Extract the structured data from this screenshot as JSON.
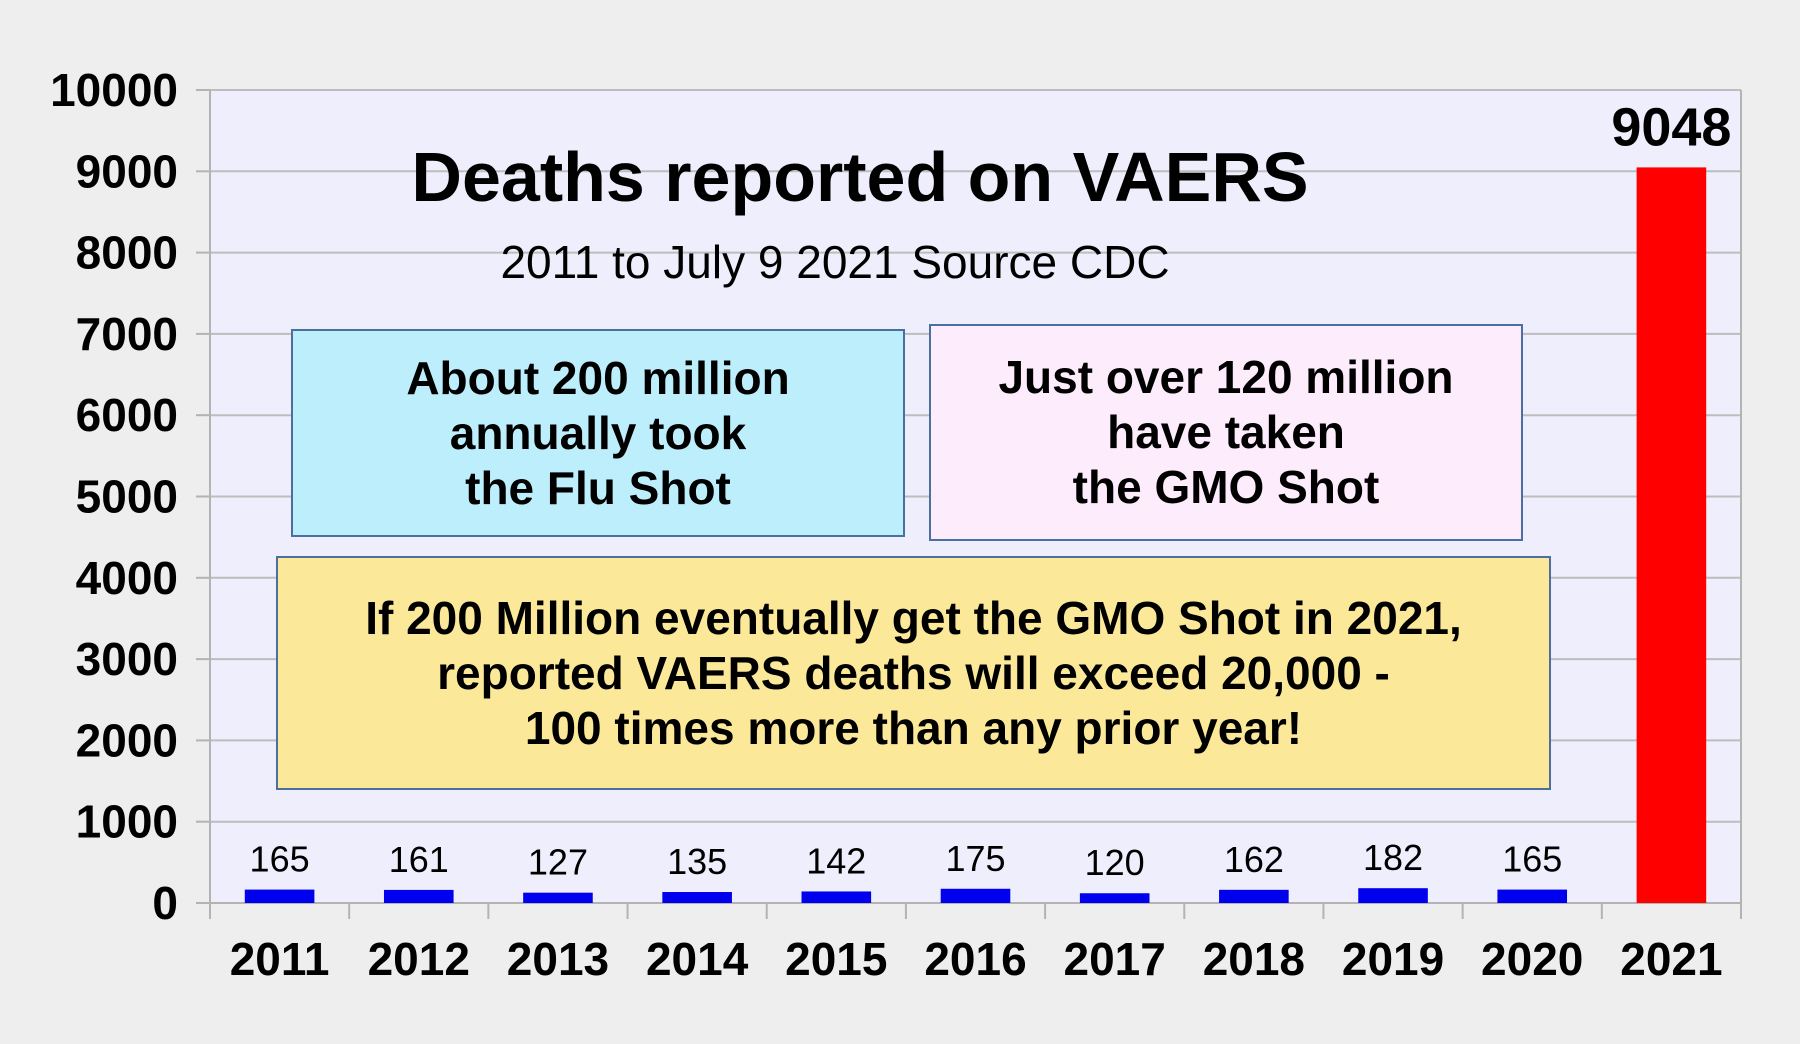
{
  "chart_data": {
    "type": "bar",
    "title": "Deaths reported on VAERS",
    "subtitle": "2011 to July 9 2021 Source CDC",
    "categories": [
      "2011",
      "2012",
      "2013",
      "2014",
      "2015",
      "2016",
      "2017",
      "2018",
      "2019",
      "2020",
      "2021"
    ],
    "values": [
      165,
      161,
      127,
      135,
      142,
      175,
      120,
      162,
      182,
      165,
      9048
    ],
    "data_labels": [
      "165",
      "161",
      "127",
      "135",
      "142",
      "175",
      "120",
      "162",
      "182",
      "165",
      "9048"
    ],
    "ylim": [
      0,
      10000
    ],
    "yticks": [
      "0",
      "1000",
      "2000",
      "3000",
      "4000",
      "5000",
      "6000",
      "7000",
      "8000",
      "9000",
      "10000"
    ],
    "grid": true,
    "colors": {
      "bar": "#0000ee",
      "highlight": "#ff0000",
      "plot_bg": "#eeeefc",
      "grid": "#bdbdbd"
    },
    "annotations": {
      "flu": [
        "About 200 million",
        "annually took",
        "the Flu Shot"
      ],
      "gmo": [
        "Just over 120 million",
        "have taken",
        "the GMO Shot"
      ],
      "projection": [
        "If 200 Million eventually get the GMO Shot in 2021,",
        "reported VAERS deaths will exceed 20,000 -",
        "100 times more than any prior year!"
      ]
    }
  }
}
